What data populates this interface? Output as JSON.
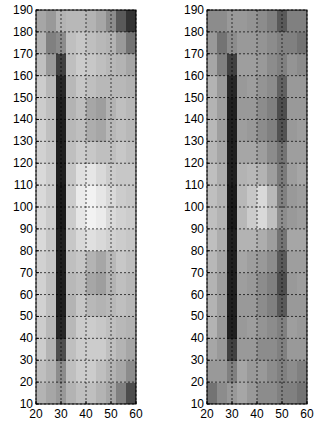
{
  "chart_data": [
    {
      "type": "heatmap",
      "xlim": [
        20,
        60
      ],
      "ylim": [
        10,
        190
      ],
      "xticks": [
        20,
        30,
        40,
        50,
        60
      ],
      "yticks": [
        10,
        20,
        30,
        40,
        50,
        60,
        70,
        80,
        90,
        100,
        110,
        120,
        130,
        140,
        150,
        160,
        170,
        180,
        190
      ],
      "grid": true,
      "x_edges": [
        20,
        24,
        28,
        32,
        36,
        40,
        44,
        48,
        52,
        56,
        60
      ],
      "y_edges": [
        10,
        20,
        30,
        40,
        50,
        60,
        70,
        80,
        90,
        100,
        110,
        120,
        130,
        140,
        150,
        160,
        170,
        180,
        190
      ],
      "cells": [
        [
          0.7,
          0.65,
          0.6,
          0.7,
          0.75,
          0.75,
          0.7,
          0.65,
          0.5,
          0.3
        ],
        [
          0.75,
          0.7,
          0.55,
          0.75,
          0.8,
          0.8,
          0.75,
          0.7,
          0.65,
          0.55
        ],
        [
          0.8,
          0.7,
          0.3,
          0.75,
          0.8,
          0.8,
          0.8,
          0.75,
          0.7,
          0.65
        ],
        [
          0.8,
          0.72,
          0.15,
          0.72,
          0.8,
          0.8,
          0.78,
          0.75,
          0.72,
          0.7
        ],
        [
          0.82,
          0.75,
          0.12,
          0.7,
          0.78,
          0.72,
          0.7,
          0.72,
          0.75,
          0.72
        ],
        [
          0.82,
          0.75,
          0.12,
          0.72,
          0.75,
          0.65,
          0.62,
          0.7,
          0.75,
          0.72
        ],
        [
          0.82,
          0.78,
          0.12,
          0.75,
          0.78,
          0.7,
          0.65,
          0.72,
          0.78,
          0.75
        ],
        [
          0.85,
          0.78,
          0.12,
          0.78,
          0.85,
          0.88,
          0.85,
          0.82,
          0.8,
          0.78
        ],
        [
          0.85,
          0.8,
          0.1,
          0.8,
          0.9,
          0.95,
          0.92,
          0.85,
          0.82,
          0.8
        ],
        [
          0.85,
          0.8,
          0.1,
          0.8,
          0.92,
          0.95,
          0.9,
          0.85,
          0.8,
          0.78
        ],
        [
          0.85,
          0.8,
          0.12,
          0.78,
          0.88,
          0.9,
          0.85,
          0.8,
          0.78,
          0.78
        ],
        [
          0.82,
          0.78,
          0.12,
          0.75,
          0.8,
          0.78,
          0.75,
          0.75,
          0.78,
          0.75
        ],
        [
          0.82,
          0.75,
          0.12,
          0.72,
          0.75,
          0.68,
          0.65,
          0.72,
          0.75,
          0.72
        ],
        [
          0.8,
          0.75,
          0.12,
          0.7,
          0.75,
          0.65,
          0.62,
          0.7,
          0.75,
          0.72
        ],
        [
          0.8,
          0.72,
          0.15,
          0.72,
          0.78,
          0.75,
          0.72,
          0.72,
          0.72,
          0.7
        ],
        [
          0.75,
          0.6,
          0.25,
          0.75,
          0.8,
          0.78,
          0.75,
          0.72,
          0.7,
          0.65
        ],
        [
          0.7,
          0.5,
          0.55,
          0.75,
          0.78,
          0.75,
          0.72,
          0.7,
          0.6,
          0.45
        ],
        [
          0.65,
          0.6,
          0.7,
          0.72,
          0.72,
          0.7,
          0.65,
          0.55,
          0.35,
          0.2
        ]
      ]
    },
    {
      "type": "heatmap",
      "xlim": [
        20,
        60
      ],
      "ylim": [
        10,
        190
      ],
      "xticks": [
        20,
        30,
        40,
        50,
        60
      ],
      "yticks": [
        10,
        20,
        30,
        40,
        50,
        60,
        70,
        80,
        90,
        100,
        110,
        120,
        130,
        140,
        150,
        160,
        170,
        180,
        190
      ],
      "grid": true,
      "x_edges": [
        20,
        24,
        28,
        32,
        36,
        40,
        44,
        48,
        52,
        56,
        60
      ],
      "y_edges": [
        10,
        20,
        30,
        40,
        50,
        60,
        70,
        80,
        90,
        100,
        110,
        120,
        130,
        140,
        150,
        160,
        170,
        180,
        190
      ],
      "cells": [
        [
          0.45,
          0.55,
          0.6,
          0.65,
          0.6,
          0.55,
          0.55,
          0.5,
          0.5,
          0.45
        ],
        [
          0.6,
          0.6,
          0.5,
          0.65,
          0.6,
          0.6,
          0.55,
          0.5,
          0.55,
          0.5
        ],
        [
          0.65,
          0.6,
          0.25,
          0.6,
          0.6,
          0.55,
          0.55,
          0.5,
          0.6,
          0.6
        ],
        [
          0.7,
          0.6,
          0.12,
          0.6,
          0.62,
          0.58,
          0.55,
          0.5,
          0.62,
          0.6
        ],
        [
          0.7,
          0.62,
          0.12,
          0.6,
          0.6,
          0.55,
          0.5,
          0.35,
          0.6,
          0.6
        ],
        [
          0.7,
          0.62,
          0.12,
          0.62,
          0.6,
          0.55,
          0.5,
          0.3,
          0.6,
          0.62
        ],
        [
          0.72,
          0.65,
          0.12,
          0.65,
          0.62,
          0.6,
          0.55,
          0.35,
          0.62,
          0.62
        ],
        [
          0.75,
          0.68,
          0.12,
          0.7,
          0.7,
          0.68,
          0.62,
          0.45,
          0.65,
          0.65
        ],
        [
          0.75,
          0.7,
          0.1,
          0.72,
          0.8,
          0.85,
          0.75,
          0.55,
          0.6,
          0.62
        ],
        [
          0.75,
          0.7,
          0.1,
          0.72,
          0.78,
          0.85,
          0.72,
          0.5,
          0.6,
          0.62
        ],
        [
          0.75,
          0.68,
          0.12,
          0.7,
          0.72,
          0.7,
          0.62,
          0.48,
          0.62,
          0.65
        ],
        [
          0.72,
          0.65,
          0.12,
          0.65,
          0.65,
          0.62,
          0.55,
          0.45,
          0.62,
          0.62
        ],
        [
          0.72,
          0.62,
          0.12,
          0.62,
          0.6,
          0.55,
          0.5,
          0.32,
          0.6,
          0.62
        ],
        [
          0.7,
          0.62,
          0.12,
          0.6,
          0.6,
          0.55,
          0.5,
          0.3,
          0.6,
          0.6
        ],
        [
          0.7,
          0.6,
          0.15,
          0.6,
          0.62,
          0.58,
          0.55,
          0.38,
          0.6,
          0.6
        ],
        [
          0.65,
          0.5,
          0.25,
          0.62,
          0.62,
          0.6,
          0.55,
          0.5,
          0.58,
          0.55
        ],
        [
          0.6,
          0.45,
          0.55,
          0.6,
          0.6,
          0.58,
          0.55,
          0.5,
          0.5,
          0.45
        ],
        [
          0.55,
          0.55,
          0.6,
          0.6,
          0.58,
          0.55,
          0.5,
          0.35,
          0.5,
          0.5
        ]
      ]
    }
  ]
}
